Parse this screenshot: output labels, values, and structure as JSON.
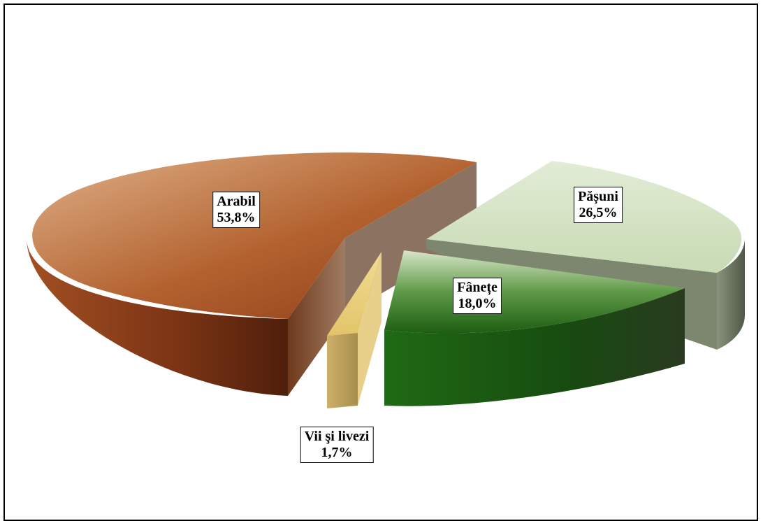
{
  "chart_data": {
    "type": "pie",
    "style": "3d-exploded",
    "title": "",
    "legend": "none",
    "slices": [
      {
        "label": "Arabil",
        "value": 53.8,
        "value_label": "53,8%",
        "color": "#9b4a22"
      },
      {
        "label": "Pășuni",
        "value": 26.5,
        "value_label": "26,5%",
        "color": "#d4e2c4"
      },
      {
        "label": "Fânețe",
        "value": 18.0,
        "value_label": "18,0%",
        "color": "#2e7a1e"
      },
      {
        "label": "Vii şi livezi",
        "value": 1.7,
        "value_label": "1,7%",
        "color": "#e6cc7a"
      }
    ]
  }
}
